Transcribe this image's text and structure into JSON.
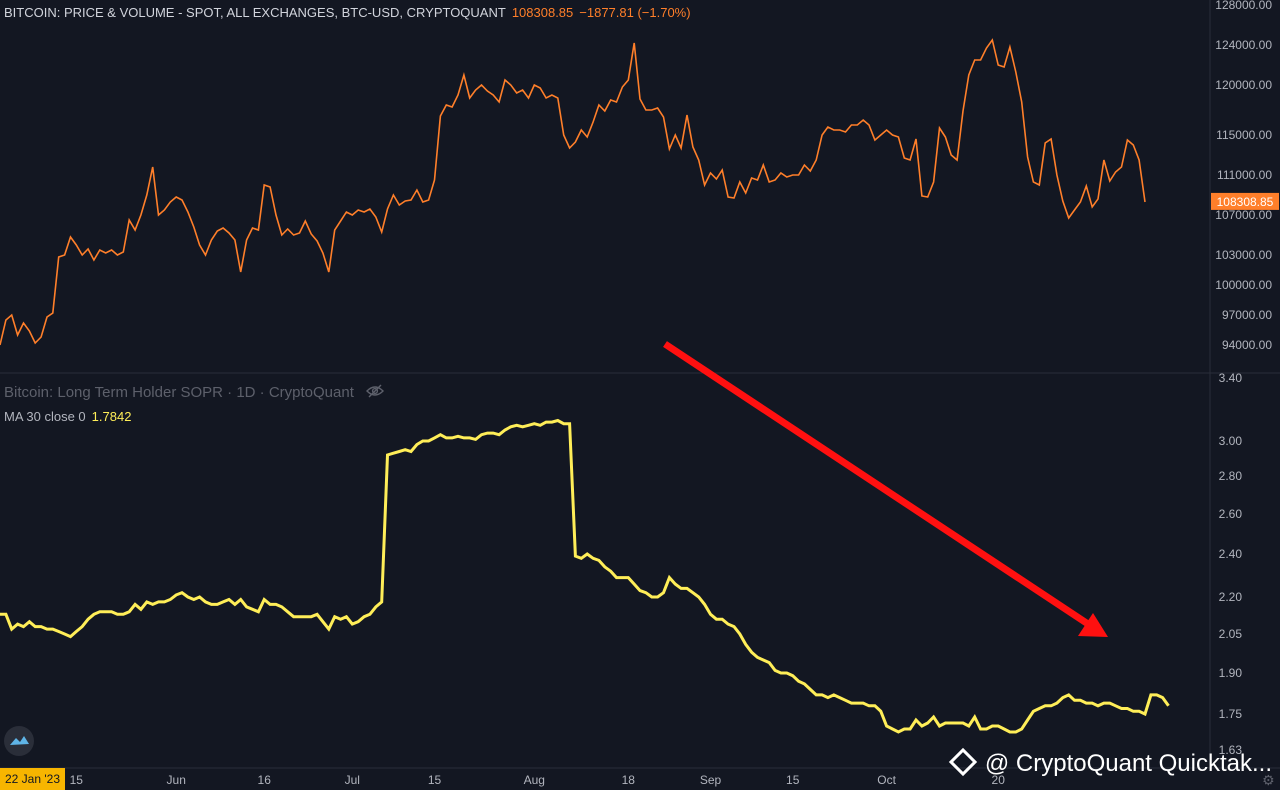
{
  "colors": {
    "background": "#131722",
    "price_line": "#ff7f2a",
    "sopr_line": "#ffee58",
    "arrow": "#ff1010",
    "axis_text": "#b2b5be",
    "price_badge_bg": "#ff7f2a",
    "date_badge_bg": "#f7b500"
  },
  "price_legend": {
    "title": "BITCOIN: PRICE & VOLUME - SPOT, ALL EXCHANGES, BTC-USD, CRYPTOQUANT",
    "last": "108308.85",
    "change": "−1877.81 (−1.70%)"
  },
  "sopr_legend": {
    "title": "Bitcoin: Long Term Holder SOPR · 1D · CryptoQuant",
    "ma_label": "MA 30 close 0",
    "ma_value": "1.7842",
    "eye_icon": "eye-slash-icon"
  },
  "date_badge": "22 Jan '23",
  "watermark": "@ CryptoQuant Quicktak...",
  "gear_icon": "gear-icon",
  "chart_data": [
    {
      "type": "line",
      "title": "BITCOIN: PRICE & VOLUME - SPOT, ALL EXCHANGES, BTC-USD, CRYPTOQUANT",
      "ylim": [
        91500,
        128000
      ],
      "yticks": [
        "128000.00",
        "124000.00",
        "120000.00",
        "115000.00",
        "111000.00",
        "107000.00",
        "103000.00",
        "100000.00",
        "97000.00",
        "94000.00"
      ],
      "last_value_label": "108308.85",
      "series": [
        {
          "values": [
            94000,
            96500,
            97000,
            95000,
            96200,
            95400,
            94200,
            94800,
            96800,
            97200,
            102800,
            103000,
            104800,
            104000,
            103000,
            103600,
            102500,
            103500,
            103200,
            103500,
            103000,
            103300,
            106500,
            105500,
            107000,
            109000,
            111800,
            107000,
            107500,
            108300,
            108800,
            108500,
            107300,
            105800,
            104000,
            103000,
            104500,
            105400,
            105700,
            105200,
            104500,
            101300,
            104500,
            105700,
            105500,
            110000,
            109800,
            107000,
            105000,
            105600,
            105000,
            105200,
            106400,
            105100,
            104400,
            103200,
            101300,
            105500,
            106400,
            107300,
            107000,
            107500,
            107300,
            107600,
            106800,
            105300,
            107600,
            109000,
            108000,
            108400,
            108500,
            109500,
            108300,
            108500,
            110500,
            116900,
            118000,
            117800,
            119000,
            121000,
            118700,
            119500,
            120000,
            119400,
            119000,
            118300,
            120500,
            120000,
            119200,
            119500,
            118700,
            120000,
            119700,
            118700,
            119000,
            118700,
            115000,
            113700,
            114300,
            115500,
            114800,
            116300,
            118000,
            117400,
            118500,
            118300,
            119800,
            120500,
            124200,
            118600,
            117500,
            117500,
            117700,
            116800,
            113600,
            115000,
            113700,
            117000,
            113800,
            112500,
            110000,
            111200,
            110600,
            111500,
            108800,
            108700,
            110300,
            109200,
            110700,
            110500,
            112000,
            110300,
            110500,
            111200,
            110800,
            111000,
            111000,
            112000,
            111400,
            112500,
            115000,
            115800,
            115500,
            115500,
            115300,
            116000,
            116000,
            116500,
            116000,
            114500,
            115000,
            115500,
            115000,
            114800,
            112700,
            112500,
            114600,
            108900,
            108800,
            110300,
            115700,
            114800,
            113000,
            112500,
            117400,
            121000,
            122500,
            122500,
            123700,
            124500,
            122000,
            121800,
            123800,
            121300,
            118300,
            112800,
            110300,
            110000,
            114200,
            114600,
            111000,
            108400,
            106700,
            107500,
            108300,
            109900,
            107800,
            108600,
            112500,
            110400,
            111300,
            111800,
            114500,
            114000,
            112500,
            108300
          ]
        }
      ]
    },
    {
      "type": "line",
      "title": "Bitcoin: Long Term Holder SOPR · 1D · CryptoQuant",
      "ylim": [
        1.61,
        3.34
      ],
      "yticks": [
        "3.40",
        "3.00",
        "2.80",
        "2.60",
        "2.40",
        "2.20",
        "2.05",
        "1.90",
        "1.75",
        "1.63"
      ],
      "series": [
        {
          "name": "MA 30 close 0",
          "values": [
            2.13,
            2.13,
            2.07,
            2.09,
            2.08,
            2.1,
            2.08,
            2.08,
            2.07,
            2.07,
            2.06,
            2.05,
            2.04,
            2.06,
            2.08,
            2.11,
            2.13,
            2.14,
            2.14,
            2.14,
            2.13,
            2.13,
            2.14,
            2.17,
            2.15,
            2.18,
            2.17,
            2.18,
            2.18,
            2.19,
            2.21,
            2.22,
            2.2,
            2.19,
            2.2,
            2.18,
            2.17,
            2.17,
            2.18,
            2.19,
            2.17,
            2.19,
            2.16,
            2.15,
            2.14,
            2.19,
            2.17,
            2.17,
            2.16,
            2.14,
            2.12,
            2.12,
            2.12,
            2.12,
            2.13,
            2.1,
            2.07,
            2.12,
            2.11,
            2.12,
            2.09,
            2.1,
            2.12,
            2.13,
            2.16,
            2.18,
            2.92,
            2.93,
            2.94,
            2.95,
            2.94,
            2.98,
            3.0,
            3.0,
            3.02,
            3.04,
            3.02,
            3.02,
            3.03,
            3.02,
            3.02,
            3.01,
            3.04,
            3.05,
            3.05,
            3.04,
            3.07,
            3.09,
            3.1,
            3.09,
            3.1,
            3.11,
            3.1,
            3.12,
            3.12,
            3.13,
            3.11,
            3.11,
            2.39,
            2.38,
            2.4,
            2.38,
            2.37,
            2.34,
            2.32,
            2.29,
            2.29,
            2.29,
            2.26,
            2.23,
            2.22,
            2.2,
            2.2,
            2.22,
            2.29,
            2.26,
            2.24,
            2.24,
            2.22,
            2.2,
            2.17,
            2.13,
            2.11,
            2.11,
            2.09,
            2.08,
            2.05,
            2.01,
            1.98,
            1.96,
            1.95,
            1.94,
            1.91,
            1.9,
            1.9,
            1.89,
            1.87,
            1.86,
            1.84,
            1.82,
            1.82,
            1.81,
            1.82,
            1.81,
            1.8,
            1.79,
            1.79,
            1.79,
            1.78,
            1.78,
            1.76,
            1.71,
            1.7,
            1.69,
            1.7,
            1.7,
            1.73,
            1.71,
            1.72,
            1.74,
            1.71,
            1.72,
            1.72,
            1.72,
            1.72,
            1.71,
            1.74,
            1.7,
            1.7,
            1.71,
            1.71,
            1.7,
            1.69,
            1.69,
            1.7,
            1.73,
            1.76,
            1.77,
            1.78,
            1.78,
            1.79,
            1.81,
            1.82,
            1.8,
            1.8,
            1.79,
            1.79,
            1.78,
            1.79,
            1.79,
            1.78,
            1.77,
            1.77,
            1.76,
            1.76,
            1.75,
            1.82,
            1.82,
            1.81,
            1.78
          ]
        }
      ]
    }
  ],
  "x_axis": {
    "ticks": [
      {
        "label": "15",
        "i": 13
      },
      {
        "label": "Jun",
        "i": 30
      },
      {
        "label": "16",
        "i": 45
      },
      {
        "label": "Jul",
        "i": 60
      },
      {
        "label": "15",
        "i": 74
      },
      {
        "label": "Aug",
        "i": 91
      },
      {
        "label": "18",
        "i": 107
      },
      {
        "label": "Sep",
        "i": 121
      },
      {
        "label": "15",
        "i": 135
      },
      {
        "label": "Oct",
        "i": 151
      },
      {
        "label": "20",
        "i": 170
      }
    ]
  }
}
